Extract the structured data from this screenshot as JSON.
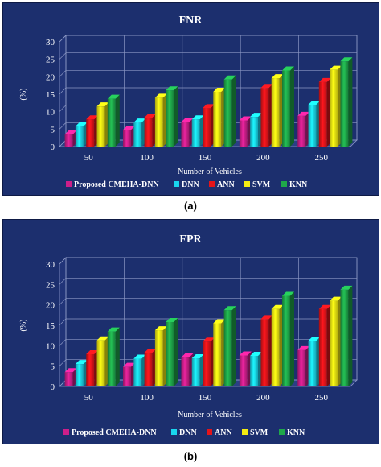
{
  "chart_data": [
    {
      "type": "bar",
      "title": "FNR",
      "xlabel": "Number of Vehicles",
      "ylabel": "(%)",
      "categories": [
        "50",
        "100",
        "150",
        "200",
        "250"
      ],
      "ylim": [
        0,
        30
      ],
      "yticks": [
        "0",
        "5",
        "10",
        "15",
        "20",
        "25",
        "30"
      ],
      "grid": true,
      "legend_position": "bottom",
      "series": [
        {
          "name": "Proposed CMEHA-DNN",
          "color": "#cc1f8a",
          "values": [
            3.5,
            4.8,
            7.0,
            7.5,
            8.8
          ]
        },
        {
          "name": "DNN",
          "color": "#19d6ef",
          "values": [
            5.8,
            6.9,
            7.8,
            8.5,
            12.0
          ]
        },
        {
          "name": "ANN",
          "color": "#e5141a",
          "values": [
            7.8,
            8.3,
            11.0,
            16.8,
            18.5
          ]
        },
        {
          "name": "SVM",
          "color": "#f3ec12",
          "values": [
            11.5,
            14.0,
            15.7,
            19.6,
            22.0
          ]
        },
        {
          "name": "KNN",
          "color": "#1fa84a",
          "values": [
            13.7,
            16.1,
            19.2,
            21.8,
            24.4
          ]
        }
      ]
    },
    {
      "type": "bar",
      "title": "FPR",
      "xlabel": "Number of Vehicles",
      "ylabel": "(%)",
      "categories": [
        "50",
        "100",
        "150",
        "200",
        "250"
      ],
      "ylim": [
        0,
        30
      ],
      "yticks": [
        "0",
        "5",
        "10",
        "15",
        "20",
        "25",
        "30"
      ],
      "grid": true,
      "legend_position": "bottom",
      "series": [
        {
          "name": "Proposed CMEHA-DNN",
          "color": "#cc1f8a",
          "values": [
            3.5,
            4.8,
            7.1,
            7.6,
            8.9
          ]
        },
        {
          "name": "DNN",
          "color": "#19d6ef",
          "values": [
            5.5,
            6.8,
            6.9,
            7.5,
            11.2
          ]
        },
        {
          "name": "ANN",
          "color": "#e5141a",
          "values": [
            7.9,
            8.3,
            11.0,
            16.5,
            19.0
          ]
        },
        {
          "name": "SVM",
          "color": "#f3ec12",
          "values": [
            11.3,
            13.8,
            15.5,
            19.0,
            21.0
          ]
        },
        {
          "name": "KNN",
          "color": "#1fa84a",
          "values": [
            13.5,
            15.8,
            18.7,
            22.2,
            23.7
          ]
        }
      ]
    }
  ],
  "captions": [
    "(a)",
    "(b)"
  ]
}
